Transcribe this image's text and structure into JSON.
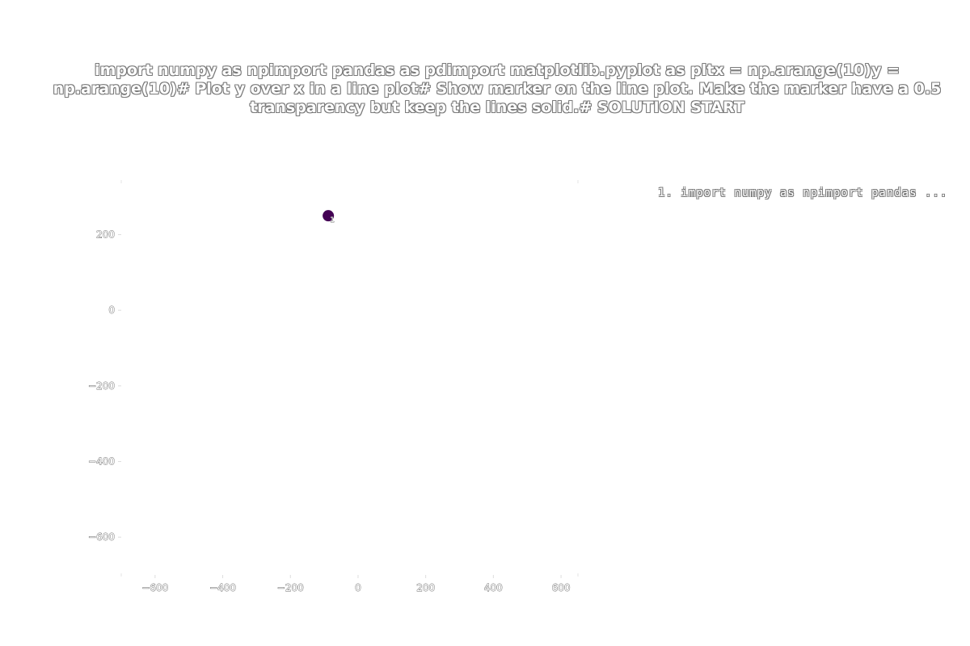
{
  "chart_data": {
    "type": "scatter",
    "title": "import numpy as npimport pandas as pdimport matplotlib.pyplot as pltx = np.arange(10)y = np.arange(10)# Plot y over x in a line plot# Show marker on the line plot. Make the marker have a 0.5 transparency but keep the lines solid.# SOLUTION START",
    "xlabel": "",
    "ylabel": "",
    "xlim": [
      -700,
      650
    ],
    "ylim": [
      -700,
      340
    ],
    "x_ticks": [
      -600,
      -400,
      -200,
      0,
      200,
      400,
      600
    ],
    "y_ticks": [
      200,
      0,
      -200,
      -400,
      -600
    ],
    "grid": false,
    "legend_position": "top-right",
    "legend_text": "1. import numpy as npimport pandas ...",
    "points": [
      {
        "x": -88,
        "y": 250,
        "label": "1",
        "color": "#440154"
      }
    ]
  }
}
